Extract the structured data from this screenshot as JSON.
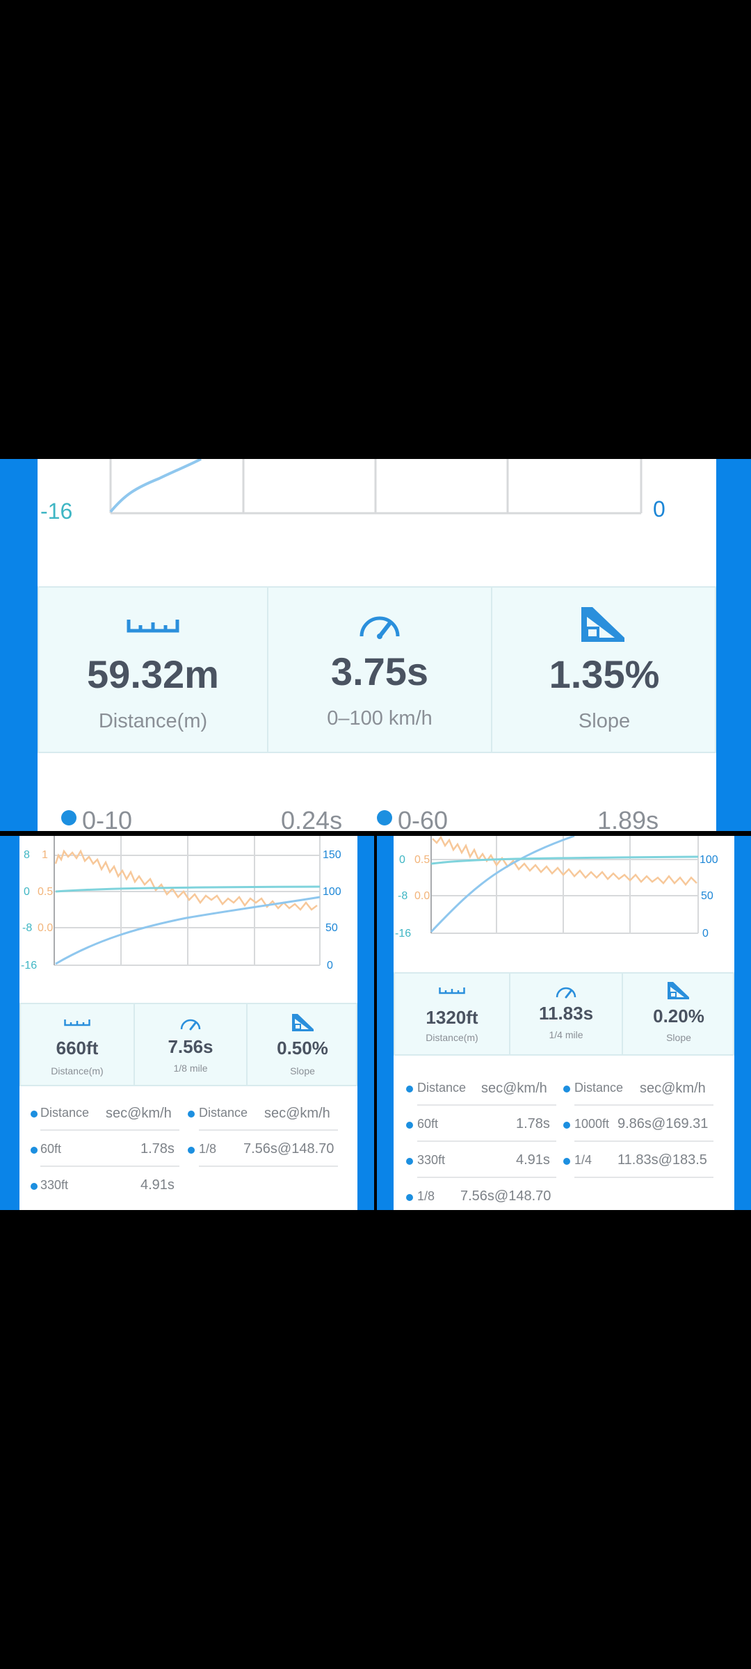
{
  "top": {
    "chart": {
      "y_left_label": "-16",
      "y_right_label": "0"
    },
    "stats": [
      {
        "value": "59.32m",
        "label": "Distance(m)",
        "icon": "ruler-icon"
      },
      {
        "value": "3.75s",
        "label": "0–100 km/h",
        "icon": "speedometer-icon"
      },
      {
        "value": "1.35%",
        "label": "Slope",
        "icon": "slope-icon"
      }
    ],
    "splits": [
      {
        "name": "0-10",
        "time": "0.24s"
      },
      {
        "name": "0-60",
        "time": "1.89s"
      }
    ]
  },
  "left_panel": {
    "chart_data": {
      "type": "line",
      "y_left_ticks": [
        "8",
        "0",
        "-8",
        "-16"
      ],
      "y_accel_ticks": [
        "1",
        "0.5",
        "0.0"
      ],
      "y_right_ticks": [
        "150",
        "100",
        "50",
        "0"
      ]
    },
    "stats": [
      {
        "value": "660ft",
        "label": "Distance(m)",
        "icon": "ruler-icon"
      },
      {
        "value": "7.56s",
        "label": "1/8 mile",
        "icon": "speedometer-icon"
      },
      {
        "value": "0.50%",
        "label": "Slope",
        "icon": "slope-icon"
      }
    ],
    "table": {
      "headers": [
        {
          "name": "Distance",
          "value": "sec@km/h"
        },
        {
          "name": "Distance",
          "value": "sec@km/h"
        }
      ],
      "rows": [
        [
          {
            "name": "60ft",
            "value": "1.78s"
          },
          {
            "name": "1/8",
            "value": "7.56s@148.70"
          }
        ],
        [
          {
            "name": "330ft",
            "value": "4.91s"
          }
        ]
      ]
    }
  },
  "right_panel": {
    "chart_data": {
      "type": "line",
      "y_left_ticks": [
        "0",
        "-8",
        "-16"
      ],
      "y_accel_ticks": [
        "0.5",
        "0.0"
      ],
      "y_right_ticks": [
        "100",
        "50",
        "0"
      ]
    },
    "stats": [
      {
        "value": "1320ft",
        "label": "Distance(m)",
        "icon": "ruler-icon"
      },
      {
        "value": "11.83s",
        "label": "1/4 mile",
        "icon": "speedometer-icon"
      },
      {
        "value": "0.20%",
        "label": "Slope",
        "icon": "slope-icon"
      }
    ],
    "table": {
      "headers": [
        {
          "name": "Distance",
          "value": "sec@km/h"
        },
        {
          "name": "Distance",
          "value": "sec@km/h"
        }
      ],
      "rows": [
        [
          {
            "name": "60ft",
            "value": "1.78s"
          },
          {
            "name": "1000ft",
            "value": "9.86s@169.31"
          }
        ],
        [
          {
            "name": "330ft",
            "value": "4.91s"
          },
          {
            "name": "1/4",
            "value": "11.83s@183.5"
          }
        ],
        [
          {
            "name": "1/8",
            "value": "7.56s@148.70"
          }
        ]
      ]
    }
  }
}
